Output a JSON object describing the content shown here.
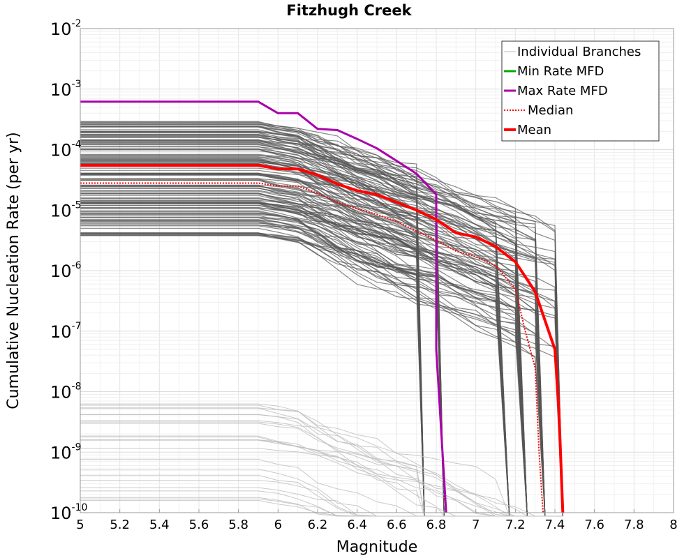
{
  "chart_data": {
    "type": "line",
    "title": "Fitzhugh Creek",
    "xlabel": "Magnitude",
    "ylabel": "Cumulative Nucleation Rate (per yr)",
    "xlim": [
      5,
      8
    ],
    "ylim_log10": [
      -10,
      -2
    ],
    "x_ticks": [
      "5",
      "5.2",
      "5.4",
      "5.6",
      "5.8",
      "6",
      "6.2",
      "6.4",
      "6.6",
      "6.8",
      "7",
      "7.2",
      "7.4",
      "7.6",
      "7.8",
      "8"
    ],
    "y_ticks": [
      {
        "base": "10",
        "exp": "-2"
      },
      {
        "base": "10",
        "exp": "-3"
      },
      {
        "base": "10",
        "exp": "-4"
      },
      {
        "base": "10",
        "exp": "-5"
      },
      {
        "base": "10",
        "exp": "-6"
      },
      {
        "base": "10",
        "exp": "-7"
      },
      {
        "base": "10",
        "exp": "-8"
      },
      {
        "base": "10",
        "exp": "-9"
      },
      {
        "base": "10",
        "exp": "-10"
      }
    ],
    "grid": true,
    "legend_position": "top-right",
    "legend": [
      {
        "label": "Individual Branches",
        "color": "#bbbbbb",
        "style": "solid-thin"
      },
      {
        "label": "Min Rate MFD",
        "color": "#00aa00",
        "style": "solid"
      },
      {
        "label": "Max Rate MFD",
        "color": "#aa00aa",
        "style": "solid"
      },
      {
        "label": "Median",
        "color": "#ff0000",
        "style": "dotted"
      },
      {
        "label": "Mean",
        "color": "#ff0000",
        "style": "solid-thick"
      }
    ],
    "branch_color": "#555555",
    "branch_light_color": "#bdbdbd",
    "series": [
      {
        "name": "Max Rate MFD",
        "color": "#aa00aa",
        "style": "solid",
        "x": [
          5.0,
          5.9,
          6.0,
          6.1,
          6.2,
          6.3,
          6.4,
          6.5,
          6.6,
          6.7,
          6.8,
          6.8,
          6.85
        ],
        "y": [
          0.00062,
          0.00062,
          0.0004,
          0.0004,
          0.00022,
          0.00021,
          0.00015,
          0.000105,
          6.5e-05,
          4e-05,
          1.8e-05,
          5e-08,
          1e-10
        ]
      },
      {
        "name": "Mean",
        "color": "#ff0000",
        "style": "solid-thick",
        "x": [
          5.0,
          5.9,
          6.0,
          6.1,
          6.2,
          6.3,
          6.4,
          6.5,
          6.6,
          6.7,
          6.8,
          6.9,
          7.0,
          7.1,
          7.2,
          7.3,
          7.35,
          7.4,
          7.42,
          7.44
        ],
        "y": [
          5.5e-05,
          5.5e-05,
          4.8e-05,
          4.8e-05,
          3.8e-05,
          2.7e-05,
          2.1e-05,
          1.8e-05,
          1.35e-05,
          1e-05,
          7e-06,
          4.2e-06,
          3.6e-06,
          2.5e-06,
          1.4e-06,
          4.5e-07,
          1.5e-07,
          5e-08,
          5e-09,
          1e-10
        ]
      },
      {
        "name": "Median",
        "color": "#ff0000",
        "style": "dotted",
        "x": [
          5.0,
          5.9,
          6.0,
          6.1,
          6.2,
          6.3,
          6.4,
          6.5,
          6.6,
          6.7,
          6.8,
          6.9,
          7.0,
          7.1,
          7.2,
          7.25,
          7.3,
          7.32,
          7.34
        ],
        "y": [
          2.8e-05,
          2.8e-05,
          2.5e-05,
          2.5e-05,
          1.9e-05,
          1.35e-05,
          1.05e-05,
          8.5e-06,
          6.5e-06,
          4.5e-06,
          3.2e-06,
          2.1e-06,
          1.7e-06,
          1.2e-06,
          5e-07,
          1e-07,
          2.5e-08,
          1e-09,
          1e-10
        ]
      }
    ]
  }
}
